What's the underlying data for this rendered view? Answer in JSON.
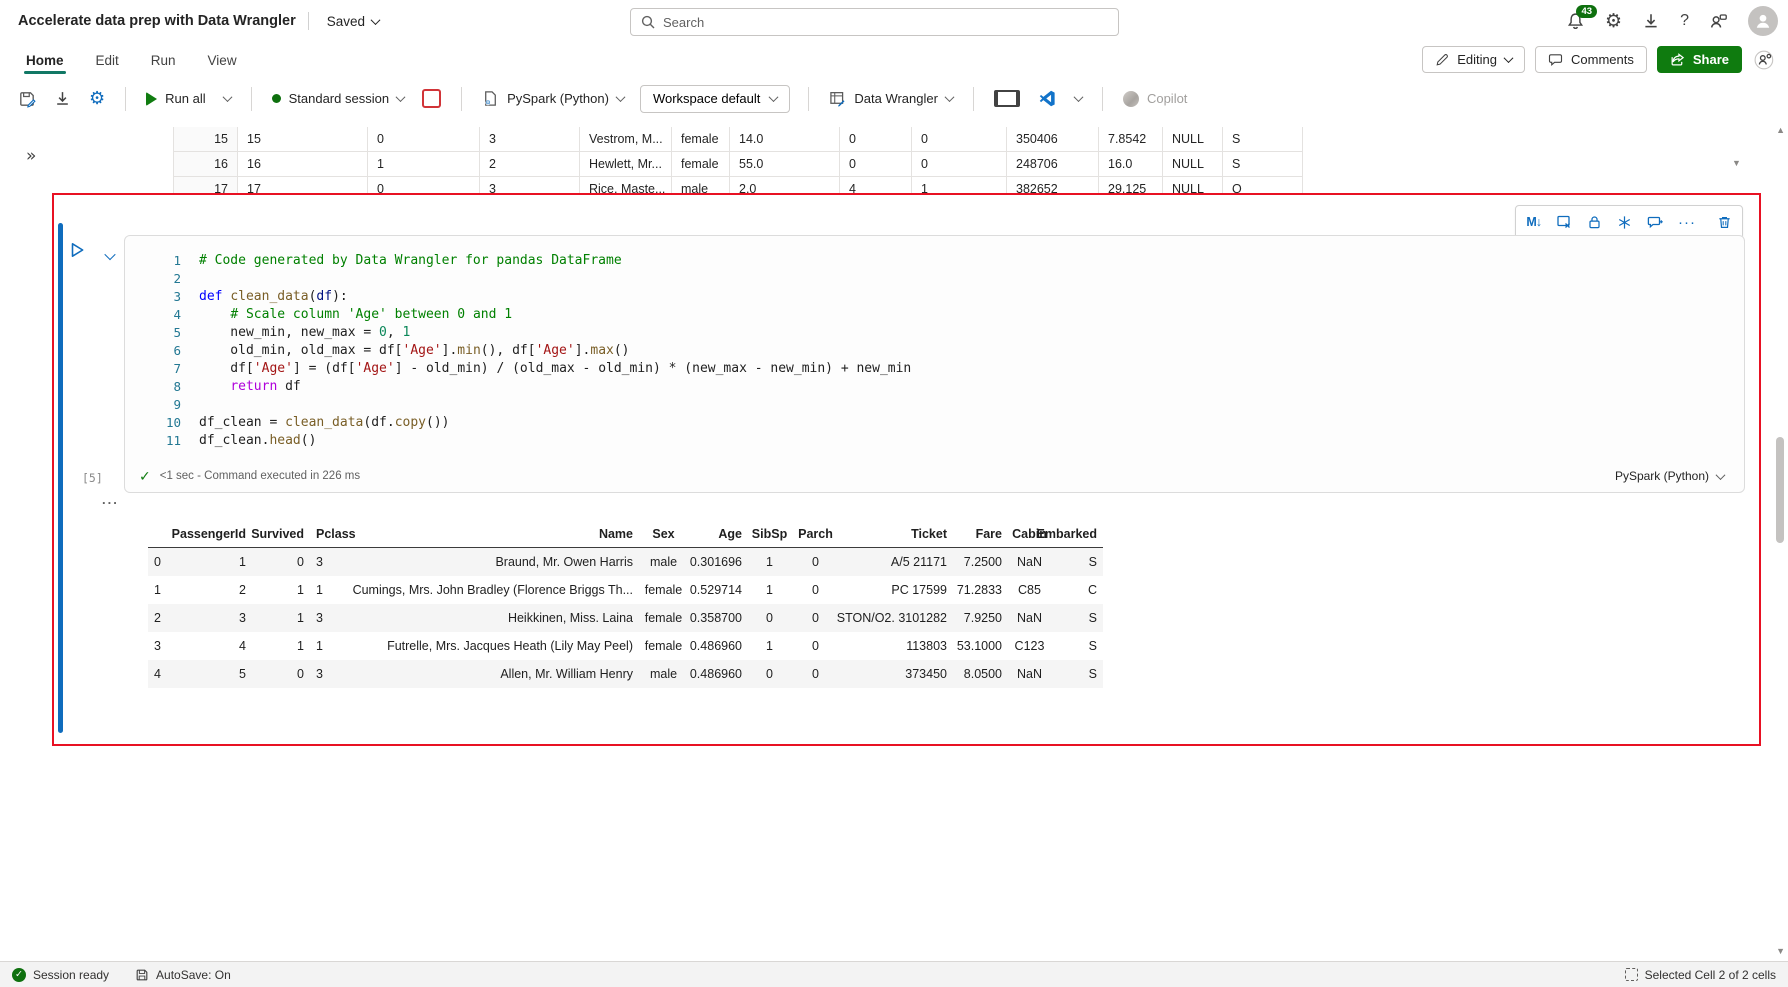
{
  "header": {
    "title": "Accelerate data prep with Data Wrangler",
    "saved_label": "Saved",
    "search_placeholder": "Search",
    "notification_count": "43"
  },
  "ribbon": {
    "tabs": [
      "Home",
      "Edit",
      "Run",
      "View"
    ],
    "active_tab": "Home",
    "editing_label": "Editing",
    "comments_label": "Comments",
    "share_label": "Share"
  },
  "toolbar": {
    "run_all": "Run all",
    "session": "Standard session",
    "language": "PySpark (Python)",
    "workspace": "Workspace default",
    "data_wrangler": "Data Wrangler",
    "copilot": "Copilot"
  },
  "content": {
    "expand_glyph": "»"
  },
  "top_table": {
    "rows": [
      [
        "15",
        "15",
        "0",
        "3",
        "Vestrom, M...",
        "female",
        "14.0",
        "0",
        "0",
        "350406",
        "7.8542",
        "NULL",
        "S"
      ],
      [
        "16",
        "16",
        "1",
        "2",
        "Hewlett, Mr...",
        "female",
        "55.0",
        "0",
        "0",
        "248706",
        "16.0",
        "NULL",
        "S"
      ],
      [
        "17",
        "17",
        "0",
        "3",
        "Rice, Maste...",
        "male",
        "2.0",
        "4",
        "1",
        "382652",
        "29.125",
        "NULL",
        "Q"
      ]
    ]
  },
  "cell": {
    "toolbar_icons": [
      "convert-to-markdown",
      "clear-output",
      "lock-cell",
      "freeze-cell",
      "add-comment",
      "more-commands",
      "delete-cell"
    ],
    "markdown_glyph": "M↓",
    "more_glyph": "···",
    "collapsed_marker": "...",
    "code_lines": [
      {
        "n": "1",
        "tk": [
          {
            "c": "cm",
            "t": "# Code generated by Data Wrangler for pandas DataFrame"
          }
        ]
      },
      {
        "n": "2",
        "tk": []
      },
      {
        "n": "3",
        "tk": [
          {
            "c": "kw",
            "t": "def"
          },
          {
            "c": "pl",
            "t": " "
          },
          {
            "c": "fn",
            "t": "clean_data"
          },
          {
            "c": "pl",
            "t": "("
          },
          {
            "c": "pr",
            "t": "df"
          },
          {
            "c": "pl",
            "t": "):"
          }
        ]
      },
      {
        "n": "4",
        "tk": [
          {
            "c": "pl",
            "t": "    "
          },
          {
            "c": "cm",
            "t": "# Scale column 'Age' between 0 and 1"
          }
        ]
      },
      {
        "n": "5",
        "tk": [
          {
            "c": "pl",
            "t": "    new_min, new_max = "
          },
          {
            "c": "nu",
            "t": "0"
          },
          {
            "c": "pl",
            "t": ", "
          },
          {
            "c": "nu",
            "t": "1"
          }
        ]
      },
      {
        "n": "6",
        "tk": [
          {
            "c": "pl",
            "t": "    old_min, old_max = df["
          },
          {
            "c": "st",
            "t": "'Age'"
          },
          {
            "c": "pl",
            "t": "]."
          },
          {
            "c": "fn",
            "t": "min"
          },
          {
            "c": "pl",
            "t": "(), df["
          },
          {
            "c": "st",
            "t": "'Age'"
          },
          {
            "c": "pl",
            "t": "]."
          },
          {
            "c": "fn",
            "t": "max"
          },
          {
            "c": "pl",
            "t": "()"
          }
        ]
      },
      {
        "n": "7",
        "tk": [
          {
            "c": "pl",
            "t": "    df["
          },
          {
            "c": "st",
            "t": "'Age'"
          },
          {
            "c": "pl",
            "t": "] = (df["
          },
          {
            "c": "st",
            "t": "'Age'"
          },
          {
            "c": "pl",
            "t": "] - old_min) / (old_max - old_min) * (new_max - new_min) + new_min"
          }
        ]
      },
      {
        "n": "8",
        "tk": [
          {
            "c": "pl",
            "t": "    "
          },
          {
            "c": "ct",
            "t": "return"
          },
          {
            "c": "pl",
            "t": " df"
          }
        ]
      },
      {
        "n": "9",
        "tk": []
      },
      {
        "n": "10",
        "tk": [
          {
            "c": "pl",
            "t": "df_clean = "
          },
          {
            "c": "fn",
            "t": "clean_data"
          },
          {
            "c": "pl",
            "t": "(df."
          },
          {
            "c": "fn",
            "t": "copy"
          },
          {
            "c": "pl",
            "t": "())"
          }
        ]
      },
      {
        "n": "11",
        "tk": [
          {
            "c": "pl",
            "t": "df_clean."
          },
          {
            "c": "fn",
            "t": "head"
          },
          {
            "c": "pl",
            "t": "()"
          }
        ]
      }
    ],
    "execution": {
      "count": "[5]",
      "status": "<1 sec - Command executed in 226 ms",
      "kernel": "PySpark (Python)"
    },
    "output_table": {
      "headers": [
        "",
        "PassengerId",
        "Survived",
        "Pclass",
        "Name",
        "Sex",
        "Age",
        "SibSp",
        "Parch",
        "Ticket",
        "Fare",
        "Cabin",
        "Embarked"
      ],
      "rows": [
        [
          "0",
          "1",
          "0",
          "3",
          "Braund, Mr. Owen Harris",
          "male",
          "0.301696",
          "1",
          "0",
          "A/5 21171",
          "7.2500",
          "NaN",
          "S"
        ],
        [
          "1",
          "2",
          "1",
          "1",
          "Cumings, Mrs. John Bradley (Florence Briggs Th...",
          "female",
          "0.529714",
          "1",
          "0",
          "PC 17599",
          "71.2833",
          "C85",
          "C"
        ],
        [
          "2",
          "3",
          "1",
          "3",
          "Heikkinen, Miss. Laina",
          "female",
          "0.358700",
          "0",
          "0",
          "STON/O2. 3101282",
          "7.9250",
          "NaN",
          "S"
        ],
        [
          "3",
          "4",
          "1",
          "1",
          "Futrelle, Mrs. Jacques Heath (Lily May Peel)",
          "female",
          "0.486960",
          "1",
          "0",
          "113803",
          "53.1000",
          "C123",
          "S"
        ],
        [
          "4",
          "5",
          "0",
          "3",
          "Allen, Mr. William Henry",
          "male",
          "0.486960",
          "0",
          "0",
          "373450",
          "8.0500",
          "NaN",
          "S"
        ]
      ]
    }
  },
  "status_bar": {
    "session": "Session ready",
    "autosave": "AutoSave: On",
    "selection": "Selected Cell 2 of 2 cells"
  },
  "colors": {
    "tab_underline": "#117865",
    "share_green": "#0f7b0f",
    "badge_green": "#0e700e",
    "run_green": "#107c10",
    "stop_red": "#d13438",
    "cell_border_red": "#e81123",
    "icon_blue": "#0f6cbd",
    "comment_green": "#008000",
    "keyword_blue": "#0000ff",
    "control_purple": "#af00db",
    "string_red": "#a31515",
    "function_brown": "#795e26",
    "number_green": "#098658",
    "vscode_blue": "#0078d4"
  },
  "icons": {
    "top_right": [
      "notifications-bell",
      "settings-gear",
      "download",
      "help",
      "feedback",
      "account-avatar"
    ],
    "toolbar_left": [
      "save",
      "download",
      "settings-gear"
    ],
    "scroll": [
      "up-arrow",
      "down-arrow"
    ]
  }
}
